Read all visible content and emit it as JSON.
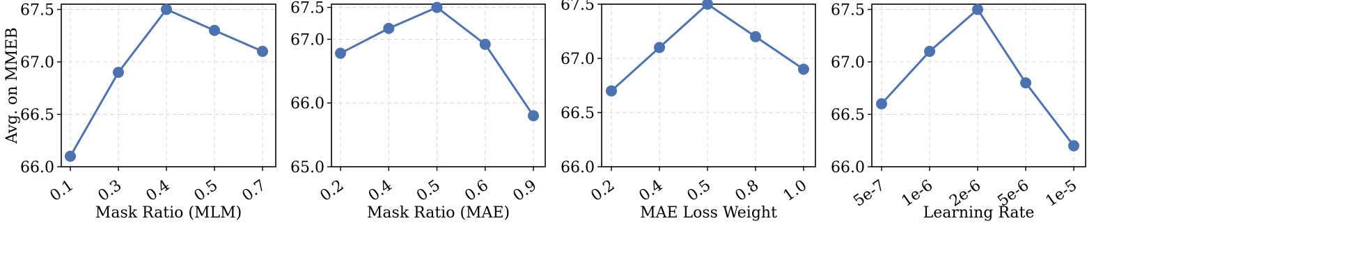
{
  "chart_data": [
    {
      "type": "line",
      "categories": [
        "0.1",
        "0.3",
        "0.4",
        "0.5",
        "0.7"
      ],
      "values": [
        66.1,
        66.9,
        67.5,
        67.3,
        67.1
      ],
      "xlabel": "Mask Ratio (MLM)",
      "ylabel": "Avg. on MMEB",
      "ylim": [
        66.0,
        67.55
      ],
      "yticks": [
        "66.0",
        "66.5",
        "67.0",
        "67.5"
      ],
      "grid": true,
      "color": "#4c72b0"
    },
    {
      "type": "line",
      "categories": [
        "0.2",
        "0.4",
        "0.5",
        "0.6",
        "0.9"
      ],
      "values": [
        66.78,
        67.17,
        67.5,
        66.92,
        65.8
      ],
      "xlabel": "Mask Ratio (MAE)",
      "ylabel": "",
      "ylim": [
        65.0,
        67.55
      ],
      "yticks": [
        "65.0",
        "66.0",
        "67.0",
        "67.5"
      ],
      "grid": true,
      "color": "#4c72b0"
    },
    {
      "type": "line",
      "categories": [
        "0.2",
        "0.4",
        "0.5",
        "0.8",
        "1.0"
      ],
      "values": [
        66.7,
        67.1,
        67.5,
        67.2,
        66.9
      ],
      "xlabel": "MAE Loss Weight",
      "ylabel": "",
      "ylim": [
        66.0,
        67.5
      ],
      "yticks": [
        "66.0",
        "66.5",
        "67.0",
        "67.5"
      ],
      "grid": true,
      "color": "#4c72b0"
    },
    {
      "type": "line",
      "categories": [
        "5e-7",
        "1e-6",
        "2e-6",
        "5e-6",
        "1e-5"
      ],
      "values": [
        66.6,
        67.1,
        67.5,
        66.8,
        66.2
      ],
      "xlabel": "Learning Rate",
      "ylabel": "",
      "ylim": [
        66.0,
        67.55
      ],
      "yticks": [
        "66.0",
        "66.5",
        "67.0",
        "67.5"
      ],
      "grid": true,
      "color": "#4c72b0"
    }
  ]
}
